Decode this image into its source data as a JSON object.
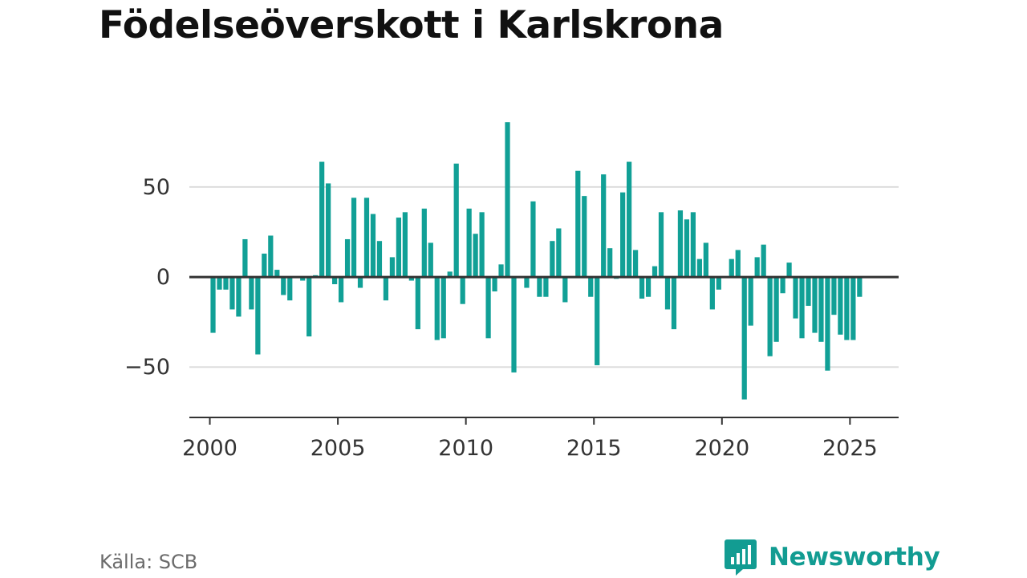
{
  "title": "Födelseöverskott i Karlskrona",
  "source": "Källa: SCB",
  "brand": "Newsworthy",
  "colors": {
    "bar": "#11a096",
    "grid": "#dddddd",
    "zero_line": "#333333",
    "axis": "#333333",
    "brand": "#129c92"
  },
  "icons": {
    "logo": "newsworthy-logo-icon"
  },
  "chart_data": {
    "type": "bar",
    "xlabel": "",
    "ylabel": "",
    "xlim": [
      1999.2,
      2026.9
    ],
    "ylim": [
      -78,
      95
    ],
    "x_ticks": [
      2000,
      2005,
      2010,
      2015,
      2020,
      2025
    ],
    "y_ticks": [
      -50,
      0,
      50
    ],
    "y_tick_labels": [
      "−50",
      "0",
      "50"
    ],
    "grid": "horizontal",
    "frequency": "quarterly",
    "x": [
      2000.125,
      2000.375,
      2000.625,
      2000.875,
      2001.125,
      2001.375,
      2001.625,
      2001.875,
      2002.125,
      2002.375,
      2002.625,
      2002.875,
      2003.125,
      2003.375,
      2003.625,
      2003.875,
      2004.125,
      2004.375,
      2004.625,
      2004.875,
      2005.125,
      2005.375,
      2005.625,
      2005.875,
      2006.125,
      2006.375,
      2006.625,
      2006.875,
      2007.125,
      2007.375,
      2007.625,
      2007.875,
      2008.125,
      2008.375,
      2008.625,
      2008.875,
      2009.125,
      2009.375,
      2009.625,
      2009.875,
      2010.125,
      2010.375,
      2010.625,
      2010.875,
      2011.125,
      2011.375,
      2011.625,
      2011.875,
      2012.125,
      2012.375,
      2012.625,
      2012.875,
      2013.125,
      2013.375,
      2013.625,
      2013.875,
      2014.125,
      2014.375,
      2014.625,
      2014.875,
      2015.125,
      2015.375,
      2015.625,
      2015.875,
      2016.125,
      2016.375,
      2016.625,
      2016.875,
      2017.125,
      2017.375,
      2017.625,
      2017.875,
      2018.125,
      2018.375,
      2018.625,
      2018.875,
      2019.125,
      2019.375,
      2019.625,
      2019.875,
      2020.125,
      2020.375,
      2020.625,
      2020.875,
      2021.125,
      2021.375,
      2021.625,
      2021.875,
      2022.125,
      2022.375,
      2022.625,
      2022.875,
      2023.125,
      2023.375,
      2023.625,
      2023.875,
      2024.125,
      2024.375,
      2024.625,
      2024.875,
      2025.125,
      2025.375
    ],
    "values": [
      -31,
      -7,
      -7,
      -18,
      -22,
      21,
      -18,
      -43,
      13,
      23,
      4,
      -10,
      -13,
      0,
      -2,
      -33,
      1,
      64,
      52,
      -4,
      -14,
      21,
      44,
      -6,
      44,
      35,
      20,
      -13,
      11,
      33,
      36,
      -2,
      -29,
      38,
      19,
      -35,
      -34,
      3,
      63,
      -15,
      38,
      24,
      36,
      -34,
      -8,
      7,
      86,
      -53,
      0,
      -6,
      42,
      -11,
      -11,
      20,
      27,
      -14,
      0,
      59,
      45,
      -11,
      -49,
      57,
      16,
      -1,
      47,
      64,
      15,
      -12,
      -11,
      6,
      36,
      -18,
      -29,
      37,
      32,
      36,
      10,
      19,
      -18,
      -7,
      0,
      10,
      15,
      -68,
      -27,
      11,
      18,
      -44,
      -36,
      -9,
      8,
      -23,
      -34,
      -16,
      -31,
      -36,
      -52,
      -21,
      -32,
      -35,
      -35,
      -11
    ]
  }
}
